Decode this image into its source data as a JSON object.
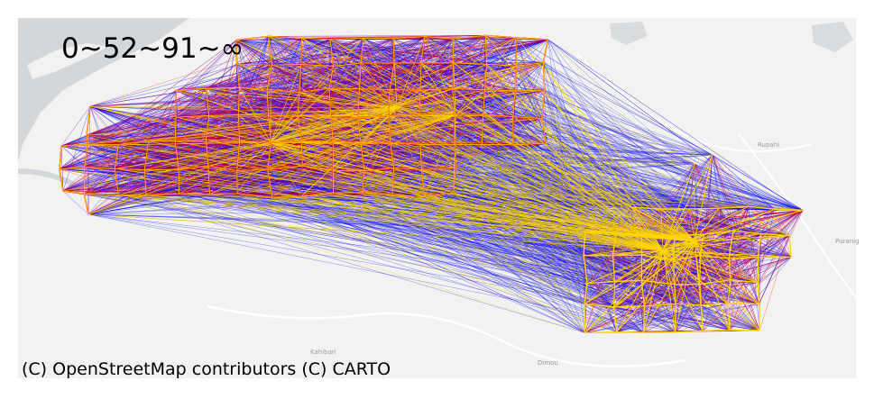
{
  "map": {
    "legend_title": "0~52~91~∞",
    "attribution": "(C) OpenStreetMap contributors (C) CARTO",
    "place_labels": [
      "Rupahi",
      "Puranig",
      "Kahibari",
      "Dimou"
    ],
    "basemap": {
      "land_color": "#f2f2f0",
      "water_color": "#d4d7da",
      "road_color": "#ffffff"
    },
    "edge_classes": [
      {
        "range": "0~52",
        "color": "#0000ff"
      },
      {
        "range": "52~91",
        "color": "#ff0000"
      },
      {
        "range": "91~∞",
        "color": "#ffd700"
      }
    ]
  }
}
